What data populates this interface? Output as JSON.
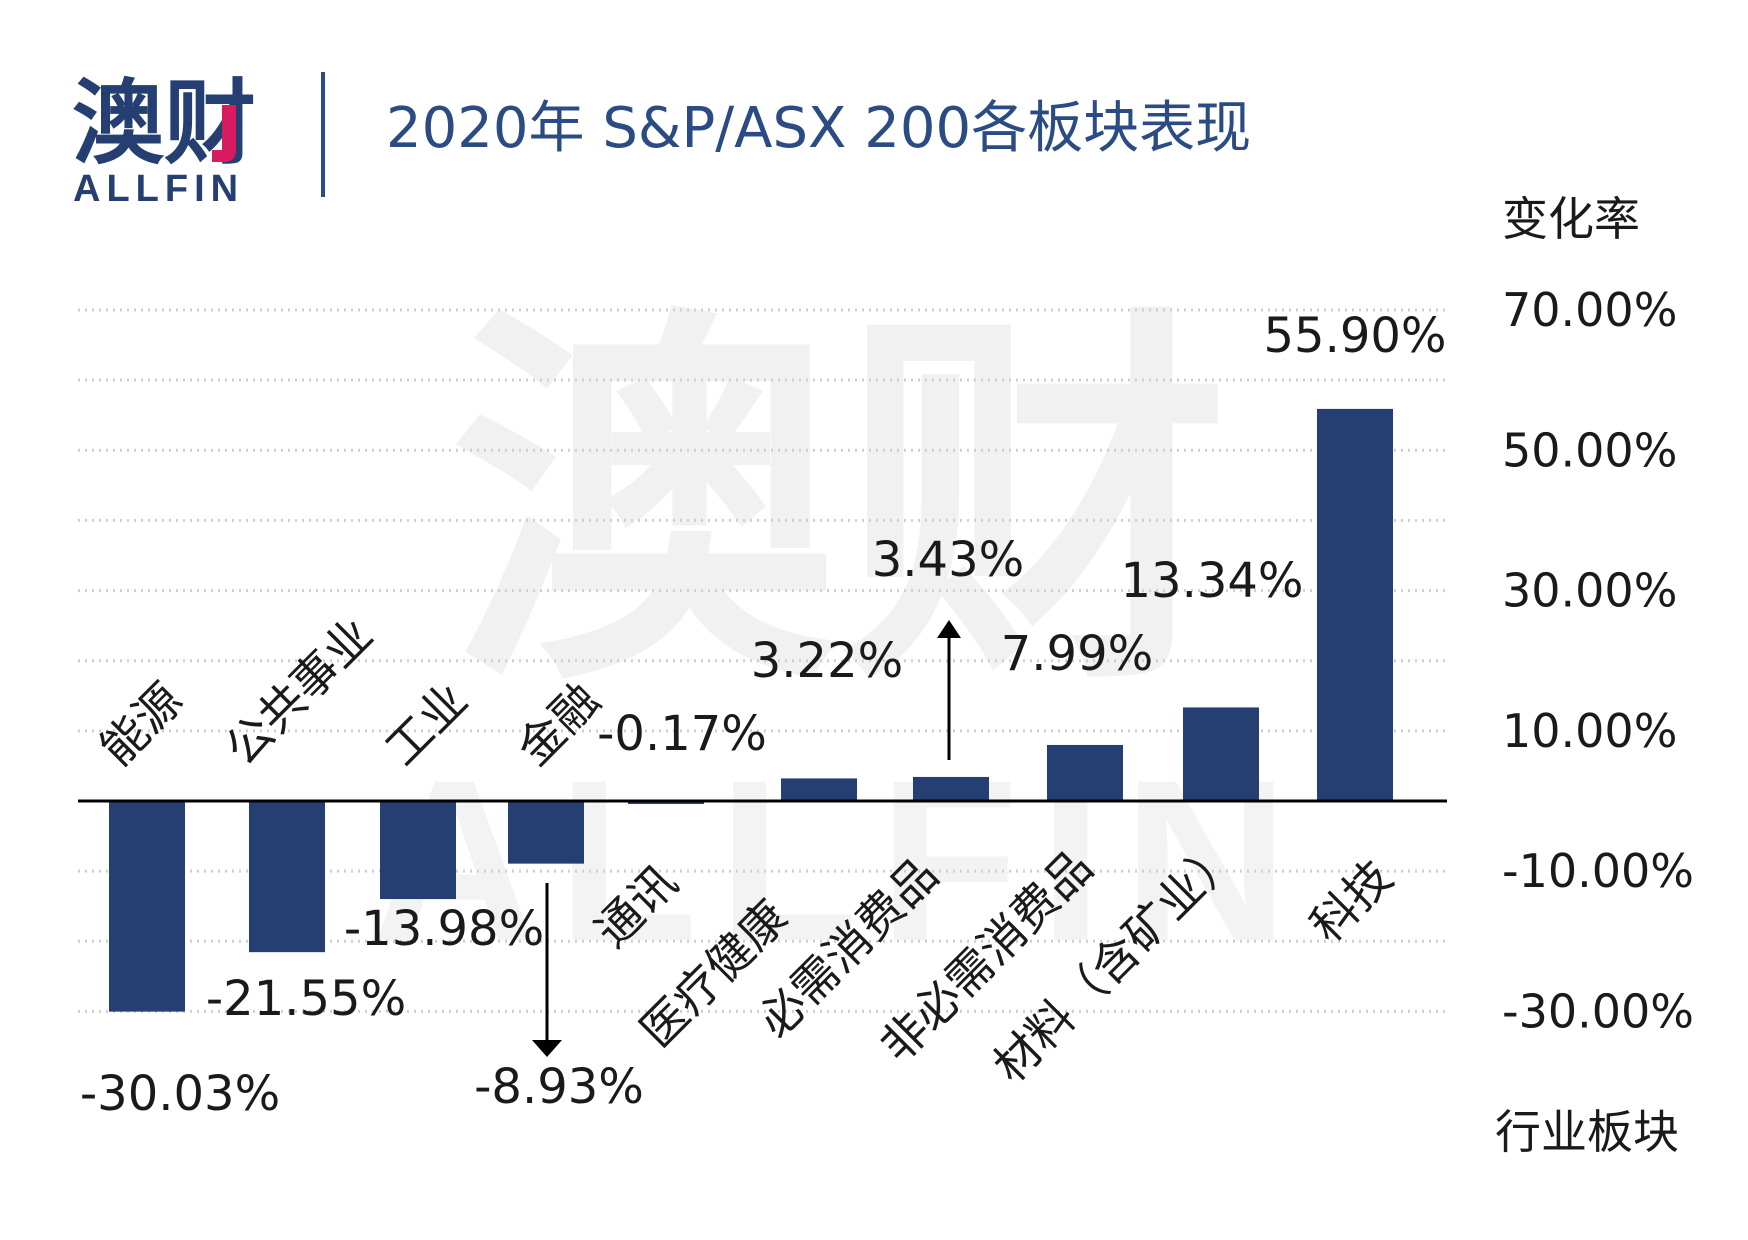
{
  "brand": {
    "name_cn": "澳财",
    "name_en": "ALLFIN",
    "watermark_cn": "澳财",
    "watermark_en": "ALLFIN"
  },
  "colors": {
    "bar": "#253f73",
    "title": "#2b4b84",
    "brand_dark": "#253f73",
    "brand_accent": "#d81b60",
    "text": "#1a1a1a",
    "grid": "#cfcfcf",
    "watermark": "#f1f1f1"
  },
  "chart_data": {
    "type": "bar",
    "title": "2020年 S&P/ASX 200各板块表现",
    "ylabel": "变化率",
    "xlabel": "行业板块",
    "ylim": [
      -40,
      70
    ],
    "y_ticks": [
      70,
      50,
      30,
      10,
      -10,
      -30
    ],
    "y_tick_labels": [
      "70.00%",
      "50.00%",
      "30.00%",
      "10.00%",
      "-10.00%",
      "-30.00%"
    ],
    "gridlines": [
      70,
      60,
      50,
      40,
      30,
      20,
      10,
      -10,
      -20,
      -30
    ],
    "categories": [
      "能源",
      "公共事业",
      "工业",
      "金融",
      "通讯",
      "医疗健康",
      "必需消费品",
      "非必需消费品",
      "材料（含矿业）",
      "科技"
    ],
    "values": [
      -30.03,
      -21.55,
      -13.98,
      -8.93,
      -0.17,
      3.22,
      3.43,
      7.99,
      13.34,
      55.9
    ],
    "value_labels": [
      "-30.03%",
      "-21.55%",
      "-13.98%",
      "-8.93%",
      "-0.17%",
      "3.22%",
      "3.43%",
      "7.99%",
      "13.34%",
      "55.90%"
    ],
    "legend": "none",
    "annotations": [
      "down-arrow under 金融",
      "up-arrow above 必需消费品"
    ]
  }
}
